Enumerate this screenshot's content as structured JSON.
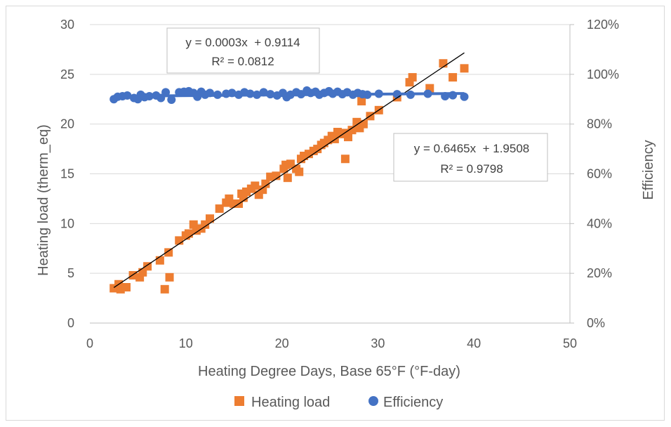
{
  "chart_data": {
    "type": "scatter",
    "title": "",
    "xlabel": "Heating Degree Days, Base 65°F (°F-day)",
    "ylabel": "Heating load (therm_eq)",
    "y2label": "Efficiency",
    "xlim": [
      0,
      50
    ],
    "ylim": [
      0,
      30
    ],
    "y2lim": [
      0,
      1.2
    ],
    "x_ticks": [
      "0",
      "10",
      "20",
      "30",
      "40",
      "50"
    ],
    "y_ticks": [
      "0",
      "5",
      "10",
      "15",
      "20",
      "25",
      "30"
    ],
    "y2_ticks": [
      "0%",
      "20%",
      "40%",
      "60%",
      "80%",
      "100%",
      "120%"
    ],
    "grid": "horizontal",
    "legend_position": "bottom",
    "series": [
      {
        "name": "Heating load",
        "axis": "left",
        "color": "#ED7D31",
        "marker": "square",
        "points": [
          [
            2.5,
            3.5
          ],
          [
            3.0,
            3.9
          ],
          [
            3.2,
            3.4
          ],
          [
            3.8,
            3.6
          ],
          [
            4.5,
            4.8
          ],
          [
            5.2,
            4.6
          ],
          [
            5.5,
            5.1
          ],
          [
            6.0,
            5.7
          ],
          [
            7.3,
            6.3
          ],
          [
            7.8,
            3.4
          ],
          [
            8.3,
            4.6
          ],
          [
            8.2,
            7.1
          ],
          [
            9.3,
            8.3
          ],
          [
            10.0,
            8.8
          ],
          [
            10.3,
            9.0
          ],
          [
            10.8,
            9.9
          ],
          [
            11.1,
            9.3
          ],
          [
            11.6,
            9.5
          ],
          [
            12.0,
            9.9
          ],
          [
            12.5,
            10.5
          ],
          [
            13.5,
            11.5
          ],
          [
            14.2,
            12.1
          ],
          [
            14.5,
            12.5
          ],
          [
            15.0,
            12.0
          ],
          [
            15.5,
            12.0
          ],
          [
            15.8,
            13.0
          ],
          [
            16.0,
            12.6
          ],
          [
            16.3,
            13.2
          ],
          [
            16.8,
            13.5
          ],
          [
            17.2,
            13.8
          ],
          [
            17.6,
            12.9
          ],
          [
            18.0,
            13.4
          ],
          [
            18.3,
            14.0
          ],
          [
            18.8,
            14.7
          ],
          [
            19.4,
            14.8
          ],
          [
            20.2,
            15.5
          ],
          [
            20.4,
            15.9
          ],
          [
            20.6,
            14.6
          ],
          [
            20.9,
            16.0
          ],
          [
            21.5,
            15.5
          ],
          [
            21.8,
            15.2
          ],
          [
            22.0,
            16.5
          ],
          [
            22.3,
            16.8
          ],
          [
            22.8,
            17.0
          ],
          [
            23.3,
            17.3
          ],
          [
            23.7,
            17.5
          ],
          [
            24.1,
            17.9
          ],
          [
            24.4,
            18.1
          ],
          [
            24.8,
            18.4
          ],
          [
            25.2,
            18.8
          ],
          [
            25.5,
            18.5
          ],
          [
            25.8,
            19.2
          ],
          [
            26.1,
            19.0
          ],
          [
            26.5,
            19.1
          ],
          [
            26.6,
            16.5
          ],
          [
            26.9,
            18.7
          ],
          [
            27.3,
            19.4
          ],
          [
            27.8,
            20.2
          ],
          [
            28.1,
            19.6
          ],
          [
            28.3,
            22.3
          ],
          [
            28.5,
            20.0
          ],
          [
            29.2,
            20.8
          ],
          [
            30.1,
            21.4
          ],
          [
            32.0,
            22.7
          ],
          [
            33.3,
            24.2
          ],
          [
            33.6,
            24.7
          ],
          [
            35.4,
            23.6
          ],
          [
            36.8,
            26.1
          ],
          [
            37.8,
            24.7
          ],
          [
            39.0,
            25.6
          ]
        ]
      },
      {
        "name": "Efficiency",
        "axis": "right",
        "color": "#4472C4",
        "marker": "circle",
        "points": [
          [
            2.5,
            0.9
          ],
          [
            2.9,
            0.91
          ],
          [
            3.4,
            0.912
          ],
          [
            3.9,
            0.915
          ],
          [
            4.6,
            0.905
          ],
          [
            5.0,
            0.9
          ],
          [
            5.3,
            0.918
          ],
          [
            5.7,
            0.908
          ],
          [
            6.2,
            0.912
          ],
          [
            6.9,
            0.915
          ],
          [
            7.4,
            0.905
          ],
          [
            7.9,
            0.928
          ],
          [
            8.5,
            0.898
          ],
          [
            9.3,
            0.928
          ],
          [
            9.8,
            0.93
          ],
          [
            10.3,
            0.932
          ],
          [
            10.8,
            0.925
          ],
          [
            11.2,
            0.91
          ],
          [
            11.6,
            0.93
          ],
          [
            12.0,
            0.918
          ],
          [
            12.5,
            0.925
          ],
          [
            13.3,
            0.918
          ],
          [
            14.2,
            0.922
          ],
          [
            14.8,
            0.925
          ],
          [
            15.5,
            0.918
          ],
          [
            16.1,
            0.928
          ],
          [
            16.7,
            0.922
          ],
          [
            17.4,
            0.918
          ],
          [
            18.1,
            0.928
          ],
          [
            18.8,
            0.92
          ],
          [
            19.5,
            0.915
          ],
          [
            20.1,
            0.925
          ],
          [
            20.5,
            0.908
          ],
          [
            20.9,
            0.918
          ],
          [
            21.5,
            0.928
          ],
          [
            22.0,
            0.92
          ],
          [
            22.6,
            0.935
          ],
          [
            23.0,
            0.925
          ],
          [
            23.5,
            0.93
          ],
          [
            23.9,
            0.918
          ],
          [
            24.4,
            0.925
          ],
          [
            24.9,
            0.932
          ],
          [
            25.3,
            0.922
          ],
          [
            25.8,
            0.93
          ],
          [
            26.3,
            0.92
          ],
          [
            26.8,
            0.928
          ],
          [
            27.4,
            0.918
          ],
          [
            27.9,
            0.925
          ],
          [
            28.4,
            0.92
          ],
          [
            28.9,
            0.918
          ],
          [
            30.1,
            0.922
          ],
          [
            32.0,
            0.92
          ],
          [
            33.4,
            0.918
          ],
          [
            35.2,
            0.922
          ],
          [
            37.0,
            0.912
          ],
          [
            37.8,
            0.916
          ],
          [
            39.0,
            0.91
          ]
        ]
      }
    ],
    "trendlines": [
      {
        "series": "Heating load",
        "equation": "y = 0.6465x  + 1.9508",
        "r2": "R² = 0.9798",
        "slope": 0.6465,
        "intercept": 1.9508,
        "x_range": [
          2.5,
          39.0
        ],
        "color": "#000000"
      },
      {
        "series": "Efficiency",
        "equation": "y = 0.0003x  + 0.9114",
        "r2": "R² = 0.0812",
        "slope": 0.0003,
        "intercept": 0.9114,
        "x_range": [
          2.5,
          39.0
        ],
        "color": "#4472C4"
      }
    ]
  }
}
